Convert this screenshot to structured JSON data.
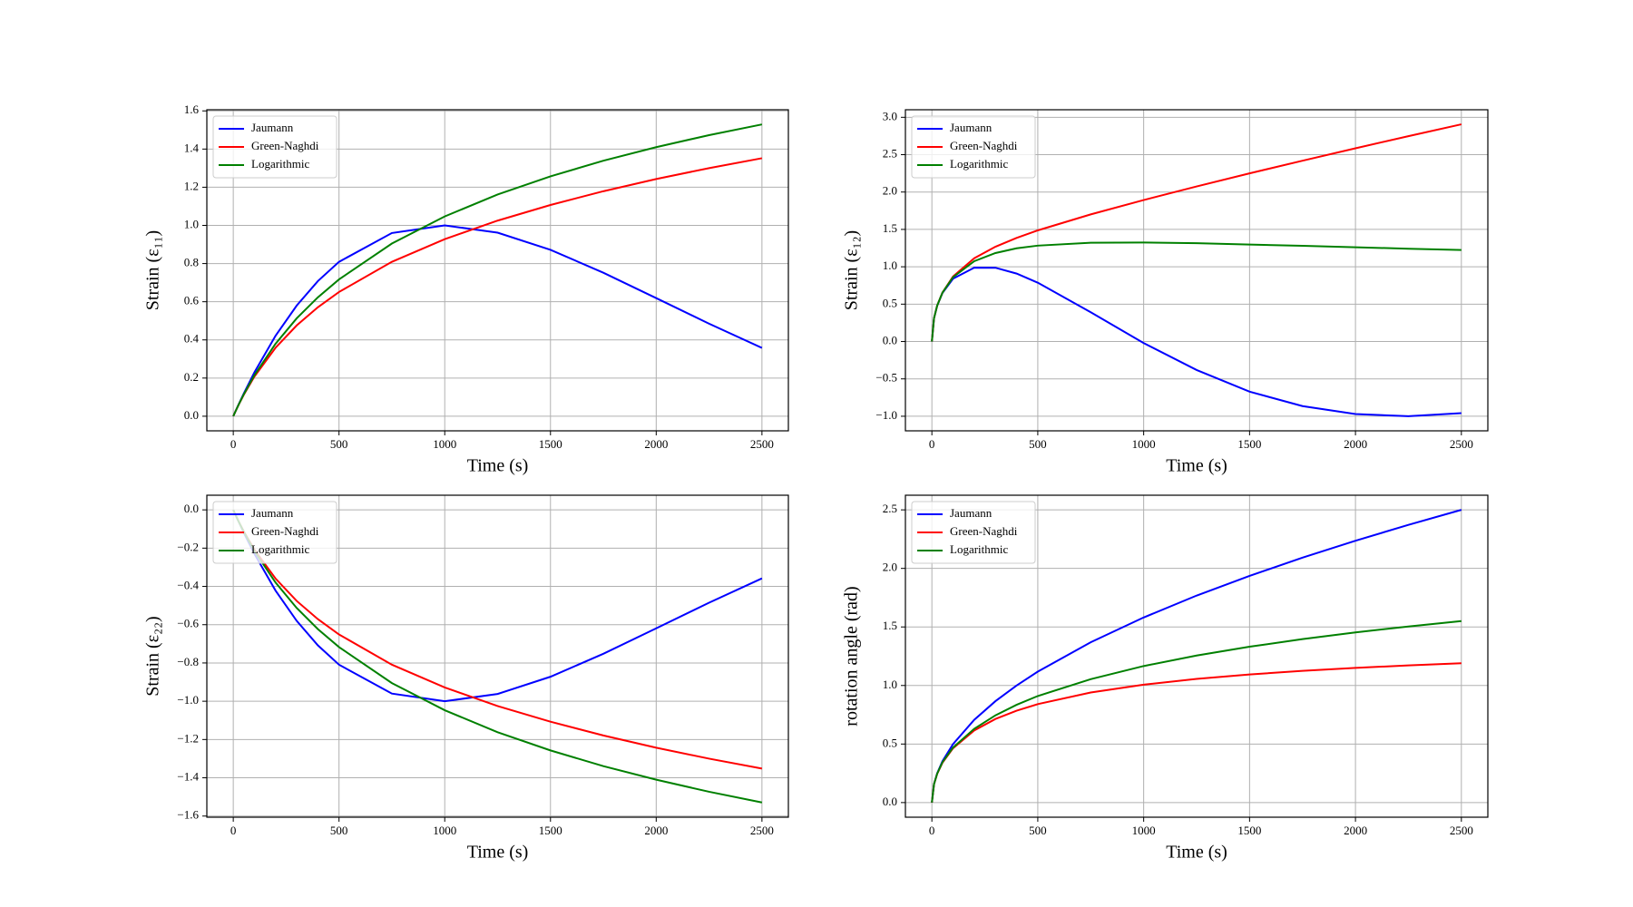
{
  "chart_data": [
    {
      "type": "line",
      "x_label": "Time (s)",
      "y_label": "Strain (ε₁₁)",
      "legend": "upper left",
      "grid": true,
      "x": [
        0,
        10,
        25,
        50,
        100,
        200,
        300,
        400,
        500,
        750,
        1000,
        1250,
        1500,
        1750,
        2000,
        2250,
        2500
      ],
      "series": [
        {
          "name": "Jaumann",
          "color": "#0000ff",
          "values": [
            0,
            0.025,
            0.061,
            0.12,
            0.23,
            0.422,
            0.58,
            0.708,
            0.809,
            0.96,
            1.0,
            0.962,
            0.872,
            0.752,
            0.619,
            0.485,
            0.358
          ]
        },
        {
          "name": "Green-Naghdi",
          "color": "#ff0000",
          "values": [
            0,
            0.0245,
            0.0595,
            0.113,
            0.208,
            0.359,
            0.476,
            0.571,
            0.651,
            0.809,
            0.928,
            1.025,
            1.107,
            1.179,
            1.243,
            1.3,
            1.352
          ]
        },
        {
          "name": "Logarithmic",
          "color": "#008000",
          "values": [
            0,
            0.0246,
            0.06,
            0.1155,
            0.215,
            0.38,
            0.513,
            0.623,
            0.717,
            0.905,
            1.047,
            1.162,
            1.257,
            1.339,
            1.41,
            1.473,
            1.529
          ]
        }
      ],
      "xlim": [
        -125,
        2625
      ],
      "xticks": [
        0,
        500,
        1000,
        1500,
        2000,
        2500
      ],
      "ylim": [
        -0.0765,
        1.606
      ],
      "yticks": [
        {
          "value": 0,
          "label": "0.0"
        },
        0.2,
        0.4,
        0.6,
        0.8,
        {
          "value": 1,
          "label": "1.0"
        },
        1.2,
        1.4,
        1.6
      ]
    },
    {
      "type": "line",
      "x_label": "Time (s)",
      "y_label": "Strain (ε₁₂)",
      "legend": "upper left",
      "grid": true,
      "x": [
        0,
        10,
        25,
        50,
        100,
        200,
        300,
        400,
        500,
        750,
        1000,
        1250,
        1500,
        1750,
        2000,
        2250,
        2500
      ],
      "series": [
        {
          "name": "Jaumann",
          "color": "#0000ff",
          "values": [
            0,
            0.311,
            0.479,
            0.65,
            0.841,
            0.988,
            0.987,
            0.909,
            0.787,
            0.392,
            -0.021,
            -0.381,
            -0.671,
            -0.864,
            -0.971,
            -0.999,
            -0.959
          ]
        },
        {
          "name": "Green-Naghdi",
          "color": "#ff0000",
          "values": [
            0,
            0.311,
            0.481,
            0.655,
            0.87,
            1.114,
            1.268,
            1.386,
            1.487,
            1.701,
            1.893,
            2.075,
            2.25,
            2.419,
            2.585,
            2.748,
            2.906
          ]
        },
        {
          "name": "Logarithmic",
          "color": "#008000",
          "values": [
            0,
            0.311,
            0.48,
            0.654,
            0.861,
            1.075,
            1.184,
            1.247,
            1.283,
            1.321,
            1.325,
            1.315,
            1.298,
            1.28,
            1.261,
            1.242,
            1.224
          ]
        }
      ],
      "xlim": [
        -125,
        2625
      ],
      "xticks": [
        0,
        500,
        1000,
        1500,
        2000,
        2500
      ],
      "ylim": [
        -1.195,
        3.101
      ],
      "yticks": [
        {
          "value": -1,
          "label": "−1.0"
        },
        {
          "value": -0.5,
          "label": "−0.5"
        },
        {
          "value": 0,
          "label": "0.0"
        },
        0.5,
        {
          "value": 1,
          "label": "1.0"
        },
        1.5,
        {
          "value": 2,
          "label": "2.0"
        },
        2.5,
        {
          "value": 3,
          "label": "3.0"
        }
      ]
    },
    {
      "type": "line",
      "x_label": "Time (s)",
      "y_label": "Strain (ε₂₂)",
      "legend": "upper left",
      "grid": true,
      "x": [
        0,
        10,
        25,
        50,
        100,
        200,
        300,
        400,
        500,
        750,
        1000,
        1250,
        1500,
        1750,
        2000,
        2250,
        2500
      ],
      "series": [
        {
          "name": "Jaumann",
          "color": "#0000ff",
          "values": [
            0,
            -0.025,
            -0.061,
            -0.12,
            -0.23,
            -0.422,
            -0.58,
            -0.708,
            -0.809,
            -0.96,
            -1.0,
            -0.962,
            -0.872,
            -0.752,
            -0.619,
            -0.485,
            -0.358
          ]
        },
        {
          "name": "Green-Naghdi",
          "color": "#ff0000",
          "values": [
            0,
            -0.0245,
            -0.0595,
            -0.113,
            -0.208,
            -0.359,
            -0.476,
            -0.571,
            -0.651,
            -0.809,
            -0.928,
            -1.025,
            -1.107,
            -1.179,
            -1.243,
            -1.3,
            -1.352
          ]
        },
        {
          "name": "Logarithmic",
          "color": "#008000",
          "values": [
            0,
            -0.0246,
            -0.06,
            -0.1155,
            -0.215,
            -0.38,
            -0.513,
            -0.623,
            -0.717,
            -0.905,
            -1.047,
            -1.162,
            -1.257,
            -1.339,
            -1.41,
            -1.473,
            -1.529
          ]
        }
      ],
      "xlim": [
        -125,
        2625
      ],
      "xticks": [
        0,
        500,
        1000,
        1500,
        2000,
        2500
      ],
      "ylim": [
        -1.606,
        0.0765
      ],
      "yticks": [
        {
          "value": -1.6,
          "label": "−1.6"
        },
        {
          "value": -1.4,
          "label": "−1.4"
        },
        {
          "value": -1.2,
          "label": "−1.2"
        },
        {
          "value": -1,
          "label": "−1.0"
        },
        {
          "value": -0.8,
          "label": "−0.8"
        },
        {
          "value": -0.6,
          "label": "−0.6"
        },
        {
          "value": -0.4,
          "label": "−0.4"
        },
        {
          "value": -0.2,
          "label": "−0.2"
        },
        {
          "value": 0,
          "label": "0.0"
        }
      ]
    },
    {
      "type": "line",
      "x_label": "Time (s)",
      "y_label": "rotation angle (rad)",
      "legend": "upper left",
      "grid": true,
      "x": [
        0,
        10,
        25,
        50,
        100,
        200,
        300,
        400,
        500,
        750,
        1000,
        1250,
        1500,
        1750,
        2000,
        2250,
        2500
      ],
      "series": [
        {
          "name": "Jaumann",
          "color": "#0000ff",
          "values": [
            0,
            0.158,
            0.25,
            0.354,
            0.5,
            0.707,
            0.866,
            1.0,
            1.118,
            1.369,
            1.581,
            1.768,
            1.936,
            2.092,
            2.236,
            2.372,
            2.5
          ]
        },
        {
          "name": "Green-Naghdi",
          "color": "#ff0000",
          "values": [
            0,
            0.157,
            0.245,
            0.34,
            0.464,
            0.616,
            0.714,
            0.785,
            0.841,
            0.94,
            1.007,
            1.056,
            1.094,
            1.125,
            1.15,
            1.172,
            1.19
          ]
        },
        {
          "name": "Logarithmic",
          "color": "#008000",
          "values": [
            0,
            0.157,
            0.247,
            0.345,
            0.47,
            0.63,
            0.745,
            0.835,
            0.91,
            1.054,
            1.166,
            1.256,
            1.331,
            1.396,
            1.453,
            1.504,
            1.55
          ]
        }
      ],
      "xlim": [
        -125,
        2625
      ],
      "xticks": [
        0,
        500,
        1000,
        1500,
        2000,
        2500
      ],
      "ylim": [
        -0.125,
        2.625
      ],
      "yticks": [
        {
          "value": 0,
          "label": "0.0"
        },
        0.5,
        {
          "value": 1,
          "label": "1.0"
        },
        1.5,
        {
          "value": 2,
          "label": "2.0"
        },
        2.5
      ]
    }
  ]
}
